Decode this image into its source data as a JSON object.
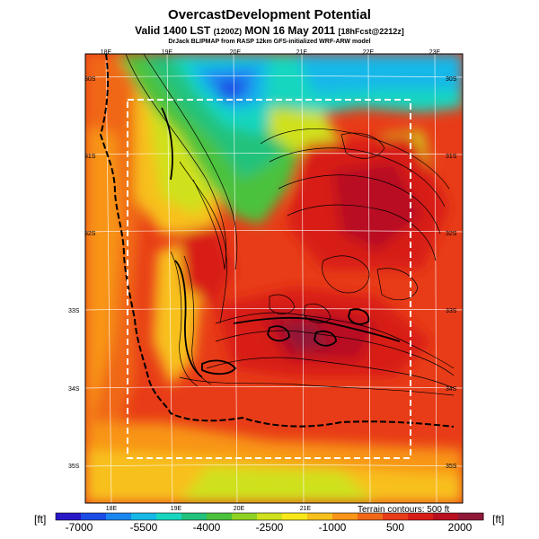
{
  "title": {
    "main": "OvercastDevelopment Potential",
    "valid_prefix": "Valid 1400 LST",
    "valid_z": "(1200Z)",
    "valid_date": "MON 16 May 2011",
    "valid_fcst": "[18hFcst@2212z]",
    "credit": "DrJack BLIPMAP from RASP 12km GFS-initialized WRF-ARW model"
  },
  "lon_labels_top": [
    "18E",
    "19E",
    "20E",
    "21E",
    "22E",
    "23E"
  ],
  "lon_labels_bottom": [
    "18E",
    "19E",
    "20E",
    "21E"
  ],
  "lat_labels_right": [
    "30S",
    "31S",
    "32S",
    "33S",
    "34S",
    "35S"
  ],
  "lat_labels_left": [
    "30S",
    "31S",
    "32S",
    "33S",
    "34S",
    "35S"
  ],
  "terrain_note": "Terrain contours: 500 ft",
  "colorbar": {
    "unit_left": "[ft]",
    "unit_right": "[ft]",
    "tick_labels": [
      "-7000",
      "-5500",
      "-4000",
      "-2500",
      "-1000",
      "500",
      "2000"
    ],
    "colors": [
      "#2a18c8",
      "#1c4ce6",
      "#1a86f0",
      "#16b8e8",
      "#18d6c0",
      "#22c27c",
      "#4cc23c",
      "#8ed224",
      "#cfe11c",
      "#f8e81a",
      "#f8c01a",
      "#f89418",
      "#f06818",
      "#e83c18",
      "#d81c18",
      "#b81020",
      "#901838"
    ]
  }
}
